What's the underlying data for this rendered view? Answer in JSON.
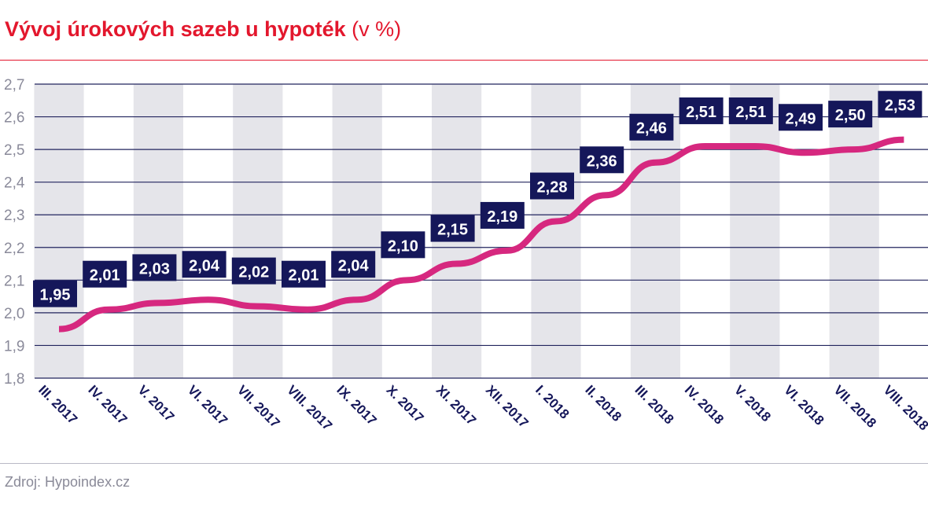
{
  "title": "Vývoj úrokových sazeb u hypoték",
  "title_unit": "(v %)",
  "source": "Zdroj: Hypoindex.cz",
  "colors": {
    "title": "#e3172d",
    "line": "#d6287f",
    "label_bg": "#15175a",
    "label_text": "#ffffff",
    "band": "#e5e5ea",
    "grid": "#22255e",
    "axis_text": "#8a8a9a",
    "category_text": "#15175a"
  },
  "chart_data": {
    "type": "line",
    "title": "Vývoj úrokových sazeb u hypoték (v %)",
    "xlabel": "",
    "ylabel": "",
    "ylim": [
      1.8,
      2.7
    ],
    "grid": true,
    "categories": [
      "III. 2017",
      "IV. 2017",
      "V. 2017",
      "VI. 2017",
      "VII. 2017",
      "VIII. 2017",
      "IX. 2017",
      "X. 2017",
      "XI. 2017",
      "XII. 2017",
      "I. 2018",
      "II. 2018",
      "III. 2018",
      "IV. 2018",
      "V. 2018",
      "VI. 2018",
      "VII. 2018",
      "VIII. 2018"
    ],
    "values": [
      1.95,
      2.01,
      2.03,
      2.04,
      2.02,
      2.01,
      2.04,
      2.1,
      2.15,
      2.19,
      2.28,
      2.36,
      2.46,
      2.51,
      2.51,
      2.49,
      2.5,
      2.53
    ],
    "labels": [
      "1,95",
      "2,01",
      "2,03",
      "2,04",
      "2,02",
      "2,01",
      "2,04",
      "2,10",
      "2,15",
      "2,19",
      "2,28",
      "2,36",
      "2,46",
      "2,51",
      "2,51",
      "2,49",
      "2,50",
      "2,53"
    ],
    "yticks": [
      1.8,
      1.9,
      2.0,
      2.1,
      2.2,
      2.3,
      2.4,
      2.5,
      2.6,
      2.7
    ],
    "ytick_labels": [
      "1,8",
      "1,9",
      "2,0",
      "2,1",
      "2,2",
      "2,3",
      "2,4",
      "2,5",
      "2,6",
      "2,7"
    ]
  }
}
